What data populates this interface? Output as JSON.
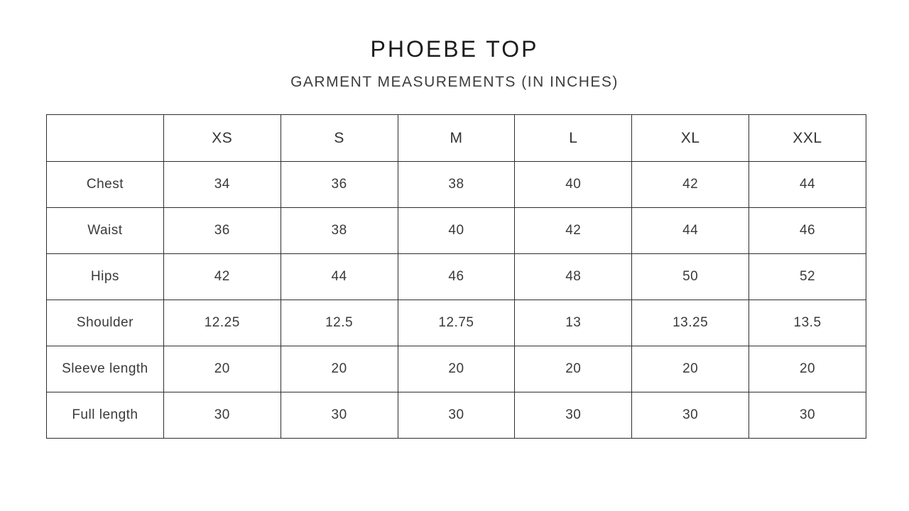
{
  "header": {
    "title": "PHOEBE TOP",
    "subtitle": "GARMENT MEASUREMENTS (IN INCHES)"
  },
  "chart_data": {
    "type": "table",
    "title": "PHOEBE TOP",
    "subtitle": "GARMENT MEASUREMENTS (IN INCHES)",
    "unit": "inches",
    "columns": [
      "",
      "XS",
      "S",
      "M",
      "L",
      "XL",
      "XXL"
    ],
    "rows": [
      {
        "label": "Chest",
        "values": [
          "34",
          "36",
          "38",
          "40",
          "42",
          "44"
        ]
      },
      {
        "label": "Waist",
        "values": [
          "36",
          "38",
          "40",
          "42",
          "44",
          "46"
        ]
      },
      {
        "label": "Hips",
        "values": [
          "42",
          "44",
          "46",
          "48",
          "50",
          "52"
        ]
      },
      {
        "label": "Shoulder",
        "values": [
          "12.25",
          "12.5",
          "12.75",
          "13",
          "13.25",
          "13.5"
        ]
      },
      {
        "label": "Sleeve length",
        "values": [
          "20",
          "20",
          "20",
          "20",
          "20",
          "20"
        ]
      },
      {
        "label": "Full length",
        "values": [
          "30",
          "30",
          "30",
          "30",
          "30",
          "30"
        ]
      }
    ],
    "layout": {
      "grid": true,
      "border_color": "#2e2e2e",
      "background": "#ffffff",
      "text_color": "#3a3a3a"
    }
  }
}
